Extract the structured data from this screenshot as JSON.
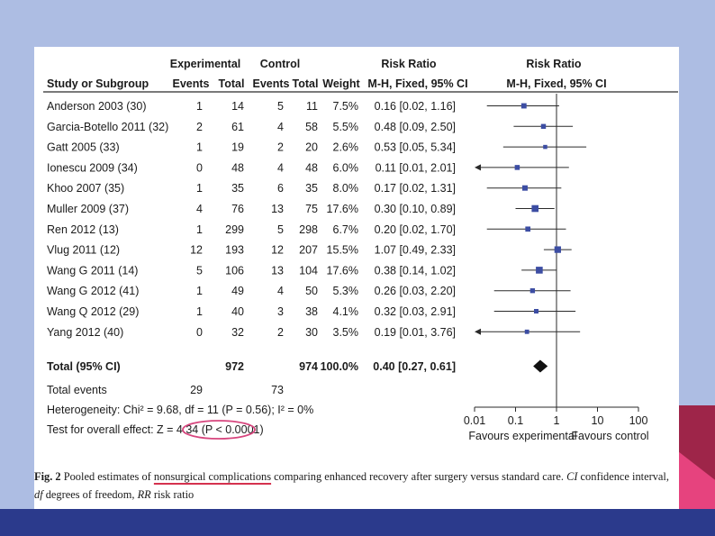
{
  "chart_data": {
    "type": "forest",
    "headers": {
      "study": "Study or Subgroup",
      "experimental": "Experimental",
      "control": "Control",
      "events": "Events",
      "total": "Total",
      "weight": "Weight",
      "rr": "Risk Ratio",
      "method": "M-H, Fixed, 95% CI"
    },
    "studies": [
      {
        "name": "Anderson 2003 (30)",
        "e_events": "1",
        "e_total": "14",
        "c_events": "5",
        "c_total": "11",
        "weight": "7.5%",
        "ci_text": "0.16 [0.02, 1.16]",
        "rr": 0.16,
        "lo": 0.02,
        "hi": 1.16
      },
      {
        "name": "Garcia-Botello 2011 (32)",
        "e_events": "2",
        "e_total": "61",
        "c_events": "4",
        "c_total": "58",
        "weight": "5.5%",
        "ci_text": "0.48 [0.09, 2.50]",
        "rr": 0.48,
        "lo": 0.09,
        "hi": 2.5
      },
      {
        "name": "Gatt 2005 (33)",
        "e_events": "1",
        "e_total": "19",
        "c_events": "2",
        "c_total": "20",
        "weight": "2.6%",
        "ci_text": "0.53 [0.05, 5.34]",
        "rr": 0.53,
        "lo": 0.05,
        "hi": 5.34
      },
      {
        "name": "Ionescu 2009 (34)",
        "e_events": "0",
        "e_total": "48",
        "c_events": "4",
        "c_total": "48",
        "weight": "6.0%",
        "ci_text": "0.11 [0.01, 2.01]",
        "rr": 0.11,
        "lo": 0.01,
        "hi": 2.01
      },
      {
        "name": "Khoo 2007 (35)",
        "e_events": "1",
        "e_total": "35",
        "c_events": "6",
        "c_total": "35",
        "weight": "8.0%",
        "ci_text": "0.17 [0.02, 1.31]",
        "rr": 0.17,
        "lo": 0.02,
        "hi": 1.31
      },
      {
        "name": "Muller 2009 (37)",
        "e_events": "4",
        "e_total": "76",
        "c_events": "13",
        "c_total": "75",
        "weight": "17.6%",
        "ci_text": "0.30 [0.10, 0.89]",
        "rr": 0.3,
        "lo": 0.1,
        "hi": 0.89
      },
      {
        "name": "Ren 2012 (13)",
        "e_events": "1",
        "e_total": "299",
        "c_events": "5",
        "c_total": "298",
        "weight": "6.7%",
        "ci_text": "0.20 [0.02, 1.70]",
        "rr": 0.2,
        "lo": 0.02,
        "hi": 1.7
      },
      {
        "name": "Vlug 2011 (12)",
        "e_events": "12",
        "e_total": "193",
        "c_events": "12",
        "c_total": "207",
        "weight": "15.5%",
        "ci_text": "1.07 [0.49, 2.33]",
        "rr": 1.07,
        "lo": 0.49,
        "hi": 2.33
      },
      {
        "name": "Wang G 2011 (14)",
        "e_events": "5",
        "e_total": "106",
        "c_events": "13",
        "c_total": "104",
        "weight": "17.6%",
        "ci_text": "0.38 [0.14, 1.02]",
        "rr": 0.38,
        "lo": 0.14,
        "hi": 1.02
      },
      {
        "name": "Wang G 2012 (41)",
        "e_events": "1",
        "e_total": "49",
        "c_events": "4",
        "c_total": "50",
        "weight": "5.3%",
        "ci_text": "0.26 [0.03, 2.20]",
        "rr": 0.26,
        "lo": 0.03,
        "hi": 2.2
      },
      {
        "name": "Wang Q 2012 (29)",
        "e_events": "1",
        "e_total": "40",
        "c_events": "3",
        "c_total": "38",
        "weight": "4.1%",
        "ci_text": "0.32 [0.03, 2.91]",
        "rr": 0.32,
        "lo": 0.03,
        "hi": 2.91
      },
      {
        "name": "Yang 2012 (40)",
        "e_events": "0",
        "e_total": "32",
        "c_events": "2",
        "c_total": "30",
        "weight": "3.5%",
        "ci_text": "0.19 [0.01, 3.76]",
        "rr": 0.19,
        "lo": 0.01,
        "hi": 3.76
      }
    ],
    "total": {
      "label": "Total (95% CI)",
      "e_total": "972",
      "c_total": "974",
      "weight": "100.0%",
      "ci_text": "0.40 [0.27, 0.61]",
      "rr": 0.4,
      "lo": 0.27,
      "hi": 0.61
    },
    "total_events": {
      "label": "Total events",
      "e_events": "29",
      "c_events": "73"
    },
    "heterogeneity": "Heterogeneity: Chi² = 9.68, df = 11 (P = 0.56); I² = 0%",
    "overall_effect": "Test for overall effect: Z = 4.34 (P < 0.0001)",
    "x_axis": {
      "scale": "log",
      "range": [
        0.01,
        100
      ],
      "ticks": [
        0.01,
        0.1,
        1,
        10,
        100
      ],
      "tick_labels": [
        "0.01",
        "0.1",
        "1",
        "10",
        "100"
      ]
    },
    "favours_left": "Favours experimental",
    "favours_right": "Favours control"
  },
  "caption": {
    "fig": "Fig. 2",
    "part1": "Pooled estimates of ",
    "underlined": "nonsurgical complications",
    "part2": " comparing enhanced recovery after surgery versus standard care. ",
    "ci_abbr": "CI",
    "part3": " confidence interval,",
    "df_abbr": "df",
    "part4": " degrees of freedom, ",
    "rr_abbr": "RR",
    "part5": " risk ratio"
  },
  "colors": {
    "marker": "#3c4da3",
    "highlight_ellipse": "#d7467e",
    "underline": "#d4314e"
  }
}
